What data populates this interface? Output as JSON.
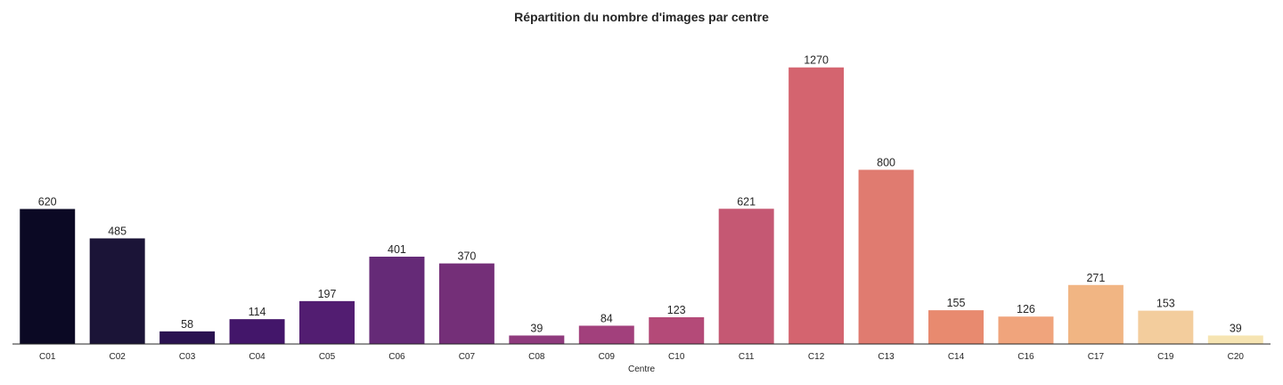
{
  "chart_data": {
    "type": "bar",
    "title": "Répartition du nombre d'images par centre",
    "xlabel": "Centre",
    "ylabel": "",
    "categories": [
      "C01",
      "C02",
      "C03",
      "C04",
      "C05",
      "C06",
      "C07",
      "C08",
      "C09",
      "C10",
      "C11",
      "C12",
      "C13",
      "C14",
      "C16",
      "C17",
      "C19",
      "C20"
    ],
    "values": [
      620,
      485,
      58,
      114,
      197,
      401,
      370,
      39,
      84,
      123,
      621,
      1270,
      800,
      155,
      126,
      271,
      153,
      39
    ],
    "ylim": [
      0,
      1330
    ],
    "grid": false,
    "legend": "none",
    "colors": [
      "#0b0924",
      "#1b1437",
      "#2a1250",
      "#43166a",
      "#521d71",
      "#652a77",
      "#742f78",
      "#8f3a7d",
      "#a2407c",
      "#b44a78",
      "#c55873",
      "#d4646f",
      "#e07b70",
      "#e88a6f",
      "#f0a47c",
      "#f1b583",
      "#f3cd9d",
      "#f6e4b2"
    ]
  }
}
